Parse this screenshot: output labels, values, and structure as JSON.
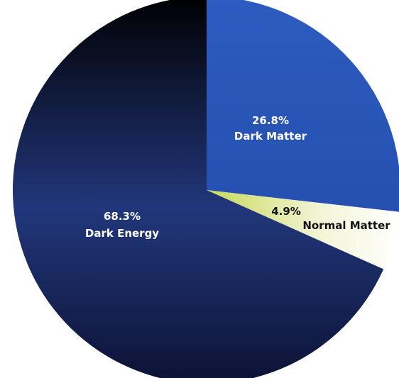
{
  "chart_data": {
    "type": "pie",
    "start_angle_deg": 90,
    "direction": "clockwise",
    "slices": [
      {
        "label": "Dark Matter",
        "value": 26.8,
        "value_label": "26.8%",
        "color": "#2a55b5",
        "label_color": "#ffffff"
      },
      {
        "label": "Normal Matter",
        "value": 4.9,
        "value_label": "4.9%",
        "color": "#f7f7e6",
        "gradient": [
          "#c8d85a",
          "#ffffff"
        ],
        "label_color": "#111111"
      },
      {
        "label": "Dark Energy",
        "value": 68.3,
        "value_label": "68.3%",
        "color": "#1d3372",
        "gradient": [
          "#010103",
          "#21377b"
        ],
        "label_color": "#ffffff"
      }
    ]
  }
}
